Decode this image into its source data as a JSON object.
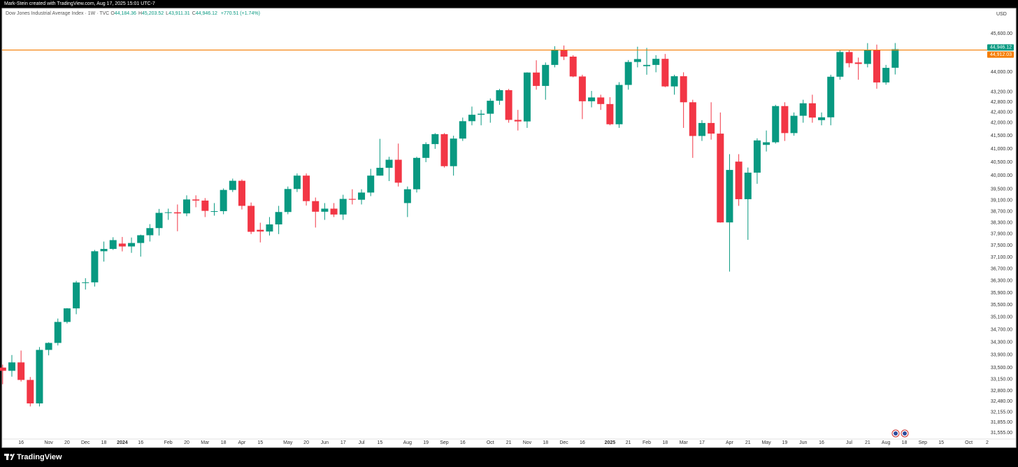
{
  "header": {
    "attribution": "Mark-Stein created with TradingView.com, Aug 17, 2025 15:01 UTC-7",
    "symbol": "Dow Jones Industrial Average Index · 1W · TVC",
    "ohlc": [
      {
        "key": "O",
        "value": "44,184.36"
      },
      {
        "key": "H",
        "value": "45,203.52"
      },
      {
        "key": "L",
        "value": "43,911.31"
      },
      {
        "key": "C",
        "value": "44,946.12"
      }
    ],
    "change": "+770.51 (+1.74%)",
    "currency": "USD"
  },
  "footer": {
    "logo": "TradingView"
  },
  "chart_data": {
    "type": "candlestick",
    "log_scale": true,
    "grid": false,
    "up_color": "#089981",
    "down_color": "#f23645",
    "ylim": [
      31372,
      46671
    ],
    "yticks": [
      {
        "value": 45600,
        "label": "45,600.00"
      },
      {
        "value": 44000,
        "label": "44,000.00"
      },
      {
        "value": 43200,
        "label": "43,200.00"
      },
      {
        "value": 42800,
        "label": "42,800.00"
      },
      {
        "value": 42400,
        "label": "42,400.00"
      },
      {
        "value": 42000,
        "label": "42,000.00"
      },
      {
        "value": 41500,
        "label": "41,500.00"
      },
      {
        "value": 41000,
        "label": "41,000.00"
      },
      {
        "value": 40500,
        "label": "40,500.00"
      },
      {
        "value": 40000,
        "label": "40,000.00"
      },
      {
        "value": 39500,
        "label": "39,500.00"
      },
      {
        "value": 39100,
        "label": "39,100.00"
      },
      {
        "value": 38700,
        "label": "38,700.00"
      },
      {
        "value": 38300,
        "label": "38,300.00"
      },
      {
        "value": 37900,
        "label": "37,900.00"
      },
      {
        "value": 37500,
        "label": "37,500.00"
      },
      {
        "value": 37100,
        "label": "37,100.00"
      },
      {
        "value": 36700,
        "label": "36,700.00"
      },
      {
        "value": 36300,
        "label": "36,300.00"
      },
      {
        "value": 35900,
        "label": "35,900.00"
      },
      {
        "value": 35500,
        "label": "35,500.00"
      },
      {
        "value": 35100,
        "label": "35,100.00"
      },
      {
        "value": 34700,
        "label": "34,700.00"
      },
      {
        "value": 34300,
        "label": "34,300.00"
      },
      {
        "value": 33900,
        "label": "33,900.00"
      },
      {
        "value": 33500,
        "label": "33,500.00"
      },
      {
        "value": 33150,
        "label": "33,150.00"
      },
      {
        "value": 32800,
        "label": "32,800.00"
      },
      {
        "value": 32480,
        "label": "32,480.00"
      },
      {
        "value": 32155,
        "label": "32,155.00"
      },
      {
        "value": 31855,
        "label": "31,855.00"
      },
      {
        "value": 31555,
        "label": "31,555.00"
      }
    ],
    "categories": [
      null,
      null,
      "16",
      null,
      null,
      "Nov",
      null,
      "20",
      null,
      "Dec",
      null,
      "18",
      null,
      "2024",
      null,
      "16",
      null,
      null,
      "Feb",
      null,
      "20",
      null,
      "Mar",
      null,
      "18",
      null,
      "Apr",
      null,
      "15",
      null,
      null,
      "May",
      null,
      "20",
      null,
      "Jun",
      null,
      "17",
      null,
      "Jul",
      null,
      "15",
      null,
      null,
      "Aug",
      null,
      "19",
      null,
      "Sep",
      null,
      "16",
      null,
      null,
      "Oct",
      null,
      "21",
      null,
      "Nov",
      null,
      "18",
      null,
      "Dec",
      null,
      "16",
      null,
      null,
      "2025",
      null,
      "21",
      null,
      "Feb",
      null,
      "18",
      null,
      "Mar",
      null,
      "17",
      null,
      null,
      "Apr",
      null,
      "21",
      null,
      "May",
      null,
      "19",
      null,
      "Jun",
      null,
      "16",
      null,
      null,
      "Jul",
      null,
      "21",
      null,
      "Aug",
      null,
      "18",
      null,
      "Sep",
      null,
      "15",
      null,
      null,
      "Oct",
      null,
      "2"
    ],
    "open": [
      33510,
      33410,
      33670,
      33130,
      32420,
      34060,
      34280,
      34950,
      35390,
      36245,
      36250,
      37305,
      37385,
      37570,
      37470,
      37590,
      37860,
      38110,
      38650,
      38670,
      38630,
      39130,
      39090,
      38700,
      38710,
      39475,
      39810,
      38900,
      38050,
      37990,
      38240,
      38680,
      39510,
      40000,
      39070,
      38690,
      38800,
      38590,
      39150,
      39120,
      39380,
      40000,
      40290,
      40590,
      39000,
      39500,
      40660,
      41180,
      41560,
      40350,
      41390,
      42060,
      42310,
      42350,
      42860,
      43280,
      42110,
      42050,
      43990,
      43450,
      44300,
      44910,
      44640,
      43830,
      42840,
      42990,
      42730,
      41940,
      43490,
      44420,
      44250,
      44300,
      44550,
      43430,
      43840,
      42800,
      41490,
      41990,
      41580,
      38310,
      40520,
      39140,
      40110,
      41150,
      41250,
      42650,
      41600,
      42270,
      42760,
      42100,
      42210,
      43820,
      44830,
      44400,
      44340,
      44900,
      43590,
      44184.36,
      null,
      null,
      null,
      null,
      null,
      null,
      null,
      null,
      null,
      null
    ],
    "high": [
      33600,
      33900,
      34040,
      33220,
      34150,
      34300,
      35060,
      35400,
      36300,
      36390,
      37350,
      37640,
      37790,
      37800,
      37780,
      37880,
      38250,
      38790,
      38800,
      38950,
      39280,
      39280,
      39180,
      39000,
      39530,
      39890,
      39860,
      39020,
      38300,
      38500,
      38900,
      39600,
      40080,
      40080,
      39200,
      39000,
      39000,
      39300,
      39500,
      39500,
      40250,
      41380,
      40700,
      41200,
      39600,
      40700,
      41250,
      41600,
      41600,
      41500,
      42200,
      42630,
      42500,
      42950,
      43330,
      43330,
      42500,
      44000,
      44490,
      44400,
      45070,
      45100,
      44700,
      43900,
      43250,
      43100,
      43000,
      43600,
      44500,
      45050,
      45000,
      44700,
      44750,
      43900,
      44000,
      42900,
      42100,
      42800,
      42400,
      40800,
      40800,
      40300,
      41400,
      41700,
      42700,
      42800,
      42400,
      42900,
      43100,
      42400,
      43900,
      44900,
      44900,
      44600,
      45200,
      45140,
      44300,
      45203.52,
      null,
      null,
      null,
      null,
      null,
      null,
      null,
      null,
      null,
      null
    ],
    "low": [
      33000,
      33230,
      33080,
      32330,
      32330,
      33890,
      34200,
      34900,
      35200,
      36010,
      36110,
      36950,
      37350,
      37300,
      37250,
      37120,
      37640,
      37850,
      38400,
      38000,
      38530,
      38850,
      38500,
      38550,
      38600,
      39400,
      38770,
      37900,
      37610,
      37850,
      37900,
      38600,
      39400,
      38910,
      38130,
      38400,
      38500,
      38400,
      38950,
      38950,
      39250,
      40000,
      39800,
      39600,
      38500,
      39380,
      40500,
      41000,
      40300,
      40000,
      41300,
      41900,
      41900,
      42000,
      42700,
      42000,
      41700,
      41800,
      43300,
      42900,
      44200,
      44500,
      43800,
      42140,
      42600,
      42500,
      41900,
      41800,
      43300,
      44200,
      43900,
      44000,
      43400,
      43100,
      41800,
      40660,
      41300,
      41350,
      38300,
      36610,
      38900,
      37700,
      39700,
      40900,
      41200,
      41300,
      41500,
      42000,
      42000,
      41900,
      41900,
      43700,
      44200,
      43700,
      44200,
      43340,
      43500,
      43911.31,
      null,
      null,
      null,
      null,
      null,
      null,
      null,
      null,
      null,
      null
    ],
    "close": [
      33410,
      33670,
      33130,
      32420,
      34060,
      34280,
      34950,
      35390,
      36245,
      36250,
      37305,
      37385,
      37690,
      37470,
      37590,
      37860,
      38110,
      38650,
      38670,
      38630,
      39130,
      39090,
      38720,
      38710,
      39475,
      39810,
      38900,
      37980,
      37990,
      38240,
      38680,
      39510,
      40000,
      39070,
      38690,
      38800,
      38590,
      39150,
      39120,
      39380,
      40000,
      40290,
      40590,
      39740,
      39500,
      40660,
      41180,
      41560,
      40350,
      41390,
      42060,
      42310,
      42350,
      42860,
      43280,
      42110,
      42050,
      43990,
      43450,
      44300,
      44910,
      44640,
      43830,
      42840,
      42990,
      42730,
      41940,
      43490,
      44420,
      44540,
      44300,
      44550,
      43430,
      43840,
      42800,
      41490,
      41990,
      41580,
      38310,
      40210,
      39140,
      40110,
      41320,
      41250,
      42650,
      41600,
      42270,
      42760,
      42200,
      42210,
      43820,
      44830,
      44370,
      44340,
      44900,
      43590,
      44180,
      44946.12,
      null,
      null,
      null,
      null,
      null,
      null,
      null,
      null,
      null,
      null
    ],
    "last_price": {
      "value": 44946.12,
      "label": "44,946.12",
      "color": "#089981"
    },
    "price_line": {
      "value": 44912.03,
      "label": "44,912.03",
      "color": "#f57c00"
    }
  }
}
